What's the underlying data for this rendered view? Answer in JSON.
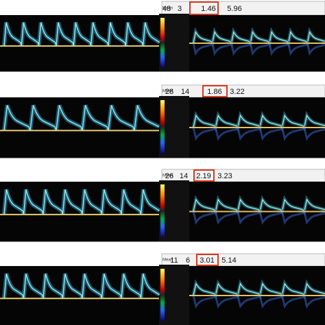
{
  "panels": [
    {
      "label": "Mean",
      "values": [
        "48",
        "3",
        "1.46",
        "5.96"
      ]
    },
    {
      "label": "Mean",
      "values": [
        "28",
        "14",
        "1.86",
        "3.22"
      ]
    },
    {
      "label": "Mean",
      "values": [
        "26",
        "14",
        "2.19",
        "3.23"
      ]
    },
    {
      "label": "Mean",
      "values": [
        "11",
        "6",
        "3.01",
        "5.14"
      ]
    }
  ]
}
